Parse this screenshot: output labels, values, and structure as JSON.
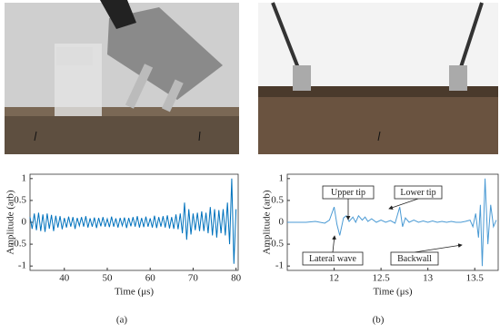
{
  "chart_data": [
    {
      "type": "line",
      "caption": "(a)",
      "ylabel": "Amplitude (arb)",
      "xlabel": "Time (μs)",
      "color": "#0072bd",
      "xlim": [
        32,
        80.5
      ],
      "ylim": [
        -1.1,
        1.1
      ],
      "xticks": [
        40,
        50,
        60,
        70,
        80
      ],
      "yticks": [
        -1,
        -0.5,
        0,
        0.5,
        1
      ],
      "x": [
        32,
        32.5,
        33,
        33.5,
        34,
        34.5,
        35,
        35.5,
        36,
        36.5,
        37,
        37.5,
        38,
        38.5,
        39,
        39.5,
        40,
        40.5,
        41,
        41.5,
        42,
        42.5,
        43,
        43.5,
        44,
        44.5,
        45,
        45.5,
        46,
        46.5,
        47,
        47.5,
        48,
        48.5,
        49,
        49.5,
        50,
        50.5,
        51,
        51.5,
        52,
        52.5,
        53,
        53.5,
        54,
        54.5,
        55,
        55.5,
        56,
        56.5,
        57,
        57.5,
        58,
        58.5,
        59,
        59.5,
        60,
        60.5,
        61,
        61.5,
        62,
        62.5,
        63,
        63.5,
        64,
        64.5,
        65,
        65.5,
        66,
        66.5,
        67,
        67.5,
        68,
        68.5,
        69,
        69.5,
        70,
        70.5,
        71,
        71.5,
        72,
        72.5,
        73,
        73.5,
        74,
        74.5,
        75,
        75.5,
        76,
        76.5,
        77,
        77.5,
        78,
        78.5,
        79,
        79.5,
        80
      ],
      "values": [
        0.12,
        -0.15,
        0.2,
        -0.18,
        0.22,
        -0.2,
        0.18,
        -0.22,
        0.2,
        -0.15,
        0.17,
        -0.2,
        0.15,
        -0.12,
        0.14,
        -0.16,
        0.1,
        -0.12,
        0.13,
        -0.1,
        0.12,
        -0.15,
        0.1,
        -0.08,
        0.12,
        -0.1,
        0.14,
        -0.12,
        0.09,
        -0.1,
        0.11,
        -0.13,
        0.1,
        -0.09,
        0.12,
        -0.1,
        0.08,
        -0.11,
        0.13,
        -0.1,
        0.09,
        -0.12,
        0.1,
        -0.08,
        0.11,
        -0.13,
        0.1,
        -0.09,
        0.12,
        -0.1,
        0.14,
        -0.12,
        0.1,
        -0.11,
        0.13,
        -0.1,
        0.09,
        -0.12,
        0.15,
        -0.13,
        0.12,
        -0.1,
        0.14,
        -0.12,
        0.16,
        -0.14,
        0.12,
        -0.15,
        0.18,
        -0.16,
        0.2,
        -0.25,
        0.45,
        -0.4,
        0.3,
        -0.28,
        0.2,
        -0.18,
        0.22,
        -0.2,
        0.25,
        -0.2,
        0.22,
        -0.25,
        0.35,
        -0.3,
        0.3,
        -0.35,
        0.28,
        -0.25,
        0.3,
        -0.3,
        0.45,
        -0.5,
        1.0,
        -0.95,
        0.3
      ]
    },
    {
      "type": "line",
      "caption": "(b)",
      "ylabel": "Amplitude (arb)",
      "xlabel": "Time (μs)",
      "color": "#4a9ad4",
      "xlim": [
        11.5,
        13.75
      ],
      "ylim": [
        -1.1,
        1.1
      ],
      "xticks": [
        12,
        12.5,
        13,
        13.5
      ],
      "yticks": [
        -1,
        -0.5,
        0,
        0.5,
        1
      ],
      "annotations": [
        "Upper tip",
        "Lower tip",
        "Lateral wave",
        "Backwall"
      ],
      "x": [
        11.5,
        11.6,
        11.7,
        11.8,
        11.9,
        11.95,
        12.0,
        12.03,
        12.06,
        12.1,
        12.13,
        12.16,
        12.2,
        12.23,
        12.26,
        12.3,
        12.33,
        12.36,
        12.4,
        12.45,
        12.5,
        12.55,
        12.6,
        12.65,
        12.7,
        12.73,
        12.76,
        12.8,
        12.85,
        12.9,
        12.95,
        13.0,
        13.05,
        13.1,
        13.15,
        13.2,
        13.25,
        13.3,
        13.35,
        13.4,
        13.45,
        13.48,
        13.51,
        13.54,
        13.56,
        13.58,
        13.61,
        13.64,
        13.67,
        13.7,
        13.73
      ],
      "values": [
        0,
        0,
        0,
        0.02,
        -0.02,
        0.05,
        0.35,
        -0.05,
        -0.3,
        0.1,
        0.15,
        0.02,
        0.12,
        0.0,
        0.15,
        0.05,
        0.12,
        0.02,
        0.08,
        0.0,
        0.05,
        0.0,
        0.04,
        -0.02,
        0.35,
        -0.1,
        0.1,
        0.0,
        0.05,
        0.0,
        0.03,
        0.0,
        0.03,
        0.0,
        0.02,
        0.0,
        0.02,
        0.0,
        0.0,
        0.02,
        0.05,
        -0.1,
        0.2,
        -0.35,
        0.4,
        -1.0,
        1.0,
        -0.5,
        0.4,
        -0.1,
        0.05
      ]
    }
  ]
}
